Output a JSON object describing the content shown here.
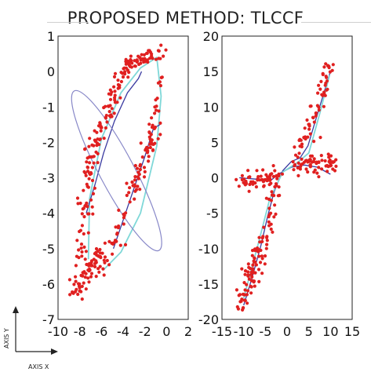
{
  "title": "PROPOSED METHOD: TLCCF",
  "corner_axes": {
    "x_label": "AXIS X",
    "y_label": "AXIS Y"
  },
  "chart_data": [
    {
      "type": "scatter",
      "title": "",
      "xlim": [
        -10,
        2
      ],
      "ylim": [
        -7,
        1
      ],
      "x_ticks": [
        -10,
        -8,
        -6,
        -4,
        -2,
        0,
        2
      ],
      "y_ticks": [
        1,
        0,
        -1,
        -2,
        -3,
        -4,
        -5,
        -6,
        -7
      ],
      "x_tick_labels": [
        "-10",
        "-8",
        "-6",
        "-4",
        "-2",
        "0",
        "2"
      ],
      "y_tick_labels": [
        "1",
        "0",
        "-1",
        "-2",
        "-3",
        "-4",
        "-5",
        "-6",
        "-7"
      ],
      "grid": false,
      "point_color": "#e02020",
      "points_description_clusters": [
        {
          "from": [
            -8.4,
            -6.3
          ],
          "to": [
            -6.0,
            -5.0
          ],
          "count": 70,
          "spread": 0.35
        },
        {
          "from": [
            -8.0,
            -5.2
          ],
          "to": [
            -6.8,
            -2.2
          ],
          "count": 60,
          "spread": 0.35
        },
        {
          "from": [
            -6.8,
            -2.2
          ],
          "to": [
            -3.6,
            0.2
          ],
          "count": 80,
          "spread": 0.35
        },
        {
          "from": [
            -3.6,
            0.2
          ],
          "to": [
            -0.2,
            0.6
          ],
          "count": 50,
          "spread": 0.25
        },
        {
          "from": [
            -6.0,
            -5.8
          ],
          "to": [
            -1.2,
            -1.7
          ],
          "count": 70,
          "spread": 0.3
        },
        {
          "from": [
            -1.6,
            -2.4
          ],
          "to": [
            -0.4,
            -0.2
          ],
          "count": 35,
          "spread": 0.25
        }
      ],
      "curves": [
        {
          "name": "",
          "color": "#7fd8d8",
          "kind": "principal-curve",
          "points": [
            [
              -7.2,
              -5.3
            ],
            [
              -7.1,
              -3.6
            ],
            [
              -6.0,
              -1.9
            ],
            [
              -4.2,
              -0.6
            ],
            [
              -2.4,
              0.1
            ],
            [
              -0.9,
              0.4
            ],
            [
              -0.5,
              -0.7
            ],
            [
              -0.9,
              -2.1
            ],
            [
              -2.4,
              -4.0
            ],
            [
              -4.2,
              -5.1
            ],
            [
              -5.8,
              -5.6
            ]
          ]
        },
        {
          "name": "",
          "color": "#3a3aa0",
          "kind": "polyline",
          "points": [
            [
              -7.4,
              -4.0
            ],
            [
              -6.6,
              -3.2
            ],
            [
              -5.8,
              -2.3
            ],
            [
              -4.8,
              -1.4
            ],
            [
              -3.6,
              -0.6
            ],
            [
              -2.6,
              -0.2
            ],
            [
              -2.3,
              0.0
            ]
          ]
        },
        {
          "name": "",
          "color": "#3a3aa0",
          "kind": "polyline",
          "points": [
            [
              -4.9,
              -5.0
            ],
            [
              -4.0,
              -4.2
            ],
            [
              -3.0,
              -3.3
            ],
            [
              -2.0,
              -2.4
            ],
            [
              -1.2,
              -1.6
            ],
            [
              -0.6,
              -1.5
            ]
          ]
        },
        {
          "name": "",
          "color": "#8888c8",
          "kind": "ellipse",
          "center": [
            -4.6,
            -2.8
          ],
          "rx": 1.6,
          "ry": 2.55,
          "angle_deg": -28
        }
      ]
    },
    {
      "type": "scatter",
      "title": "",
      "xlim": [
        -15,
        15
      ],
      "ylim": [
        -20,
        20
      ],
      "x_ticks": [
        -15,
        -10,
        -5,
        0,
        5,
        10,
        15
      ],
      "y_ticks": [
        20,
        15,
        10,
        5,
        0,
        -5,
        -10,
        -15,
        -20
      ],
      "x_tick_labels": [
        "-15",
        "-10",
        "-5",
        "0",
        "5",
        "10",
        "15"
      ],
      "y_tick_labels": [
        "20",
        "15",
        "10",
        "5",
        "0",
        "-5",
        "-10",
        "-15",
        "-20"
      ],
      "grid": false,
      "point_color": "#e02020",
      "points_description_clusters": [
        {
          "from": [
            -10.5,
            -18.0
          ],
          "to": [
            -2.0,
            -1.5
          ],
          "count": 110,
          "spread": 0.9
        },
        {
          "from": [
            -11.5,
            -0.5
          ],
          "to": [
            -2.0,
            0.0
          ],
          "count": 60,
          "spread": 0.9
        },
        {
          "from": [
            2.0,
            2.0
          ],
          "to": [
            11.0,
            2.0
          ],
          "count": 70,
          "spread": 1.0
        },
        {
          "from": [
            3.5,
            4.0
          ],
          "to": [
            10.0,
            16.0
          ],
          "count": 60,
          "spread": 0.7
        }
      ],
      "curves": [
        {
          "name": "",
          "color": "#3a3aa0",
          "kind": "polyline",
          "points": [
            [
              -10,
              -18
            ],
            [
              -8,
              -14
            ],
            [
              -6,
              -9.5
            ],
            [
              -4.5,
              -5.5
            ],
            [
              -3,
              -2
            ],
            [
              -1,
              1
            ],
            [
              1,
              2.3
            ],
            [
              3,
              2.8
            ],
            [
              4.8,
              4.5
            ],
            [
              6.5,
              8
            ],
            [
              8.5,
              12
            ],
            [
              10,
              15
            ]
          ]
        },
        {
          "name": "",
          "color": "#3a3aa0",
          "kind": "polyline",
          "points": [
            [
              -11,
              0
            ],
            [
              -7,
              -0.2
            ],
            [
              -4,
              -0.5
            ],
            [
              -2,
              0.5
            ],
            [
              1,
              1.5
            ],
            [
              4,
              1.8
            ],
            [
              7,
              1.5
            ],
            [
              10,
              0.5
            ]
          ]
        },
        {
          "name": "",
          "color": "#7fd8d8",
          "kind": "principal-curve",
          "points": [
            [
              -10,
              -17
            ],
            [
              -6.5,
              -9
            ],
            [
              -4,
              -3
            ],
            [
              -1,
              0.8
            ],
            [
              2.5,
              2.2
            ],
            [
              5,
              3.5
            ],
            [
              7.5,
              9
            ],
            [
              9.8,
              14.5
            ]
          ]
        }
      ]
    }
  ]
}
